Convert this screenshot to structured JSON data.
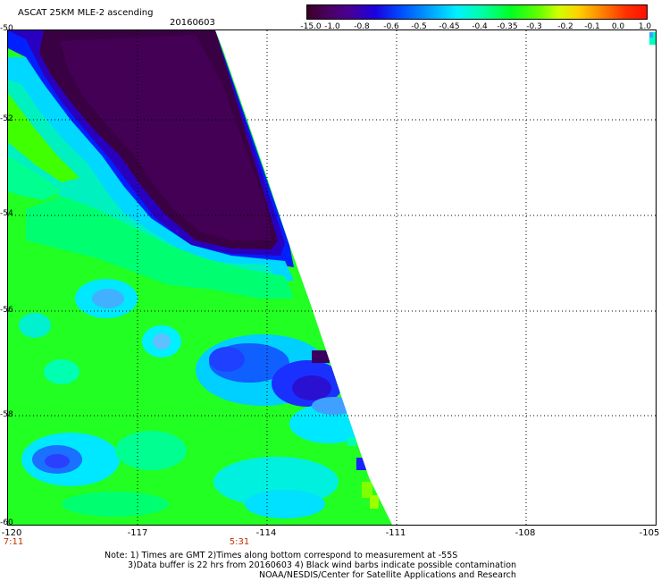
{
  "title": "ASCAT 25KM MLE-2 ascending",
  "date": "20160603",
  "colorbar": {
    "labels": [
      "-15.0",
      "-1.0",
      "-0.8",
      "-0.6",
      "-0.5",
      "-0.45",
      "-0.4",
      "-0.35",
      "-0.3",
      "-0.2",
      "-0.1",
      "0.0",
      "1.0"
    ]
  },
  "map": {
    "lat_labels": [
      "-50",
      "-52",
      "-54",
      "-56",
      "-58",
      "-60"
    ],
    "lon_labels": [
      "-120",
      "-117",
      "-114",
      "-111",
      "-108",
      "-105"
    ],
    "time_labels": [
      "7:11",
      "5:31"
    ],
    "grid": "dotted",
    "colors": {
      "very_low": "#3a0040",
      "low": "#3a00c8",
      "mid": "#00c8ff",
      "cyan": "#00ffe0",
      "green": "#00ff40",
      "lime": "#50ff00"
    }
  },
  "notes": {
    "line1": "Note: 1) Times are GMT 2)Times along bottom correspond to measurement at -55S",
    "line2": "3)Data buffer is 22 hrs from 20160603 4) Black wind barbs indicate possible contamination",
    "line3": "NOAA/NESDIS/Center for Satellite Applications and Research"
  }
}
